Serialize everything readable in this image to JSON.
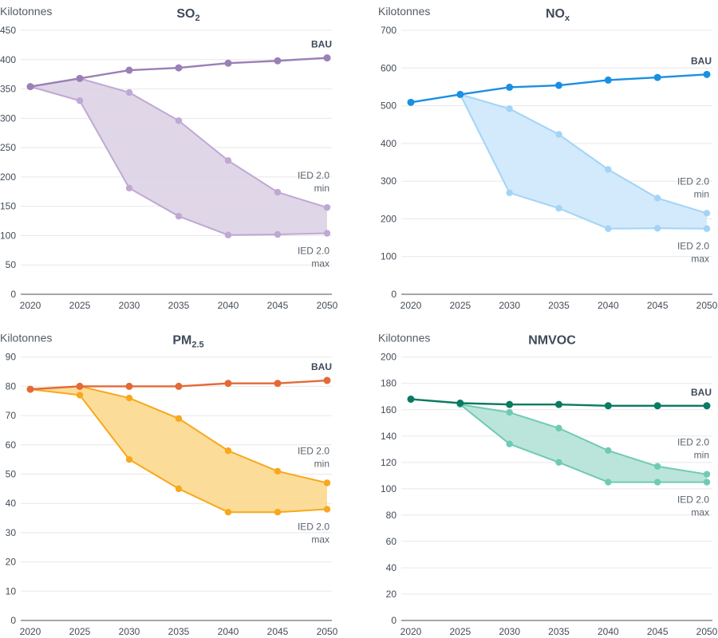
{
  "chart_data": [
    {
      "type": "line",
      "id": "so2",
      "title": "SO",
      "title_sub": "2",
      "ylabel": "Kilotonnes",
      "x": [
        2020,
        2025,
        2030,
        2035,
        2040,
        2045,
        2050
      ],
      "x_ticks": [
        "2020",
        "2025",
        "2030",
        "2035",
        "2040",
        "2045",
        "2050"
      ],
      "ylim": [
        0,
        450
      ],
      "y_ticks": [
        0,
        50,
        100,
        150,
        200,
        250,
        300,
        350,
        400,
        450
      ],
      "grid": true,
      "colors": {
        "bau": "#9b7fb6",
        "band_line": "#bfa8d4",
        "band_fill": "#dcd1e6"
      },
      "series": [
        {
          "name": "BAU",
          "values": [
            354,
            368,
            382,
            386,
            394,
            398,
            403
          ]
        },
        {
          "name": "IED 2.0 min",
          "values": [
            354,
            368,
            344,
            296,
            228,
            174,
            148
          ]
        },
        {
          "name": "IED 2.0 max",
          "values": [
            354,
            330,
            181,
            133,
            101,
            102,
            104
          ]
        }
      ],
      "labels": {
        "bau": "BAU",
        "min_line1": "IED 2.0",
        "min_line2": "min",
        "max_line1": "IED 2.0",
        "max_line2": "max"
      }
    },
    {
      "type": "line",
      "id": "nox",
      "title": "NO",
      "title_sub": "x",
      "ylabel": "Kilotonnes",
      "x": [
        2020,
        2025,
        2030,
        2035,
        2040,
        2045,
        2050
      ],
      "x_ticks": [
        "2020",
        "2025",
        "2030",
        "2035",
        "2040",
        "2045",
        "2050"
      ],
      "ylim": [
        0,
        700
      ],
      "y_ticks": [
        0,
        100,
        200,
        300,
        400,
        500,
        600,
        700
      ],
      "grid": true,
      "colors": {
        "bau": "#1a8fe3",
        "band_line": "#a3d4f7",
        "band_fill": "#cde8fb"
      },
      "series": [
        {
          "name": "BAU",
          "values": [
            509,
            530,
            549,
            554,
            568,
            575,
            583
          ]
        },
        {
          "name": "IED 2.0 min",
          "values": [
            null,
            530,
            492,
            424,
            331,
            255,
            215
          ]
        },
        {
          "name": "IED 2.0 max",
          "values": [
            null,
            530,
            269,
            228,
            174,
            175,
            174
          ]
        }
      ],
      "labels": {
        "bau": "BAU",
        "min_line1": "IED 2.0",
        "min_line2": "min",
        "max_line1": "IED 2.0",
        "max_line2": "max"
      }
    },
    {
      "type": "line",
      "id": "pm25",
      "title": "PM",
      "title_sub": "2.5",
      "ylabel": "Kilotonnes",
      "x": [
        2020,
        2025,
        2030,
        2035,
        2040,
        2045,
        2050
      ],
      "x_ticks": [
        "2020",
        "2025",
        "2030",
        "2035",
        "2040",
        "2045",
        "2050"
      ],
      "ylim": [
        0,
        90
      ],
      "y_ticks": [
        0,
        10,
        20,
        30,
        40,
        50,
        60,
        70,
        80,
        90
      ],
      "grid": true,
      "colors": {
        "bau": "#e36a36",
        "band_line": "#f8a81c",
        "band_fill": "#fcd88e"
      },
      "series": [
        {
          "name": "BAU",
          "values": [
            79,
            80,
            80,
            80,
            81,
            81,
            82
          ]
        },
        {
          "name": "IED 2.0 min",
          "values": [
            79,
            80,
            76,
            69,
            58,
            51,
            47
          ]
        },
        {
          "name": "IED 2.0 max",
          "values": [
            79,
            77,
            55,
            45,
            37,
            37,
            38
          ]
        }
      ],
      "labels": {
        "bau": "BAU",
        "min_line1": "IED 2.0",
        "min_line2": "min",
        "max_line1": "IED 2.0",
        "max_line2": "max"
      }
    },
    {
      "type": "line",
      "id": "nmvoc",
      "title": "NMVOC",
      "title_sub": "",
      "ylabel": "Kilotonnes",
      "x": [
        2020,
        2025,
        2030,
        2035,
        2040,
        2045,
        2050
      ],
      "x_ticks": [
        "2020",
        "2025",
        "2030",
        "2035",
        "2040",
        "2045",
        "2050"
      ],
      "ylim": [
        0,
        200
      ],
      "y_ticks": [
        0,
        20,
        40,
        60,
        80,
        100,
        120,
        140,
        160,
        180,
        200
      ],
      "grid": true,
      "colors": {
        "bau": "#0a7a62",
        "band_line": "#6fcab4",
        "band_fill": "#b4e2d6"
      },
      "series": [
        {
          "name": "BAU",
          "values": [
            168,
            165,
            164,
            164,
            163,
            163,
            163
          ]
        },
        {
          "name": "IED 2.0 min",
          "values": [
            null,
            164,
            158,
            146,
            129,
            117,
            111
          ]
        },
        {
          "name": "IED 2.0 max",
          "values": [
            null,
            164,
            134,
            120,
            105,
            105,
            105
          ]
        }
      ],
      "labels": {
        "bau": "BAU",
        "min_line1": "IED 2.0",
        "min_line2": "min",
        "max_line1": "IED 2.0",
        "max_line2": "max"
      }
    }
  ]
}
